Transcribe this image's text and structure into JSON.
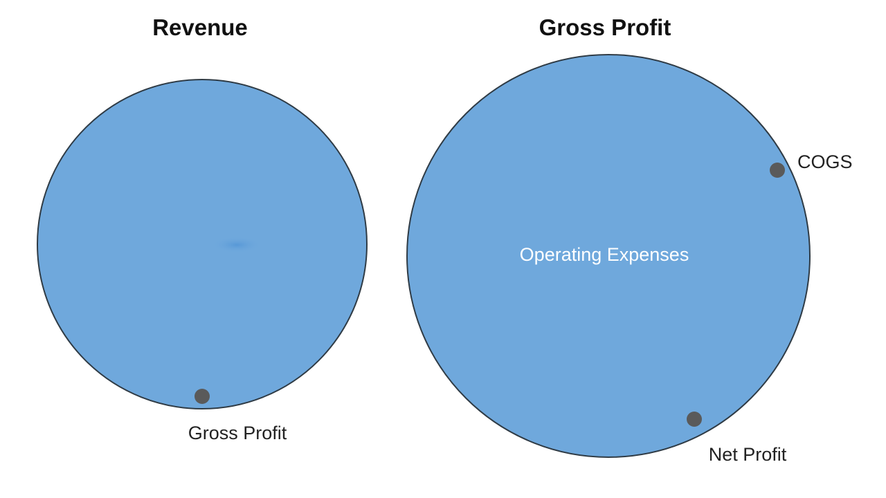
{
  "colors": {
    "circle_fill": "#6fa8dc",
    "circle_stroke": "#2f3b45",
    "dot": "#5a5a5a",
    "title_text": "#111111",
    "callout_text": "#222222",
    "inner_text": "#ffffff"
  },
  "diagram": {
    "left_panel": {
      "title": "Revenue",
      "callout": "Gross Profit"
    },
    "right_panel": {
      "title": "Gross Profit",
      "inner_label": "Operating Expenses",
      "callouts": {
        "cogs": "COGS",
        "net_profit": "Net Profit"
      }
    }
  }
}
